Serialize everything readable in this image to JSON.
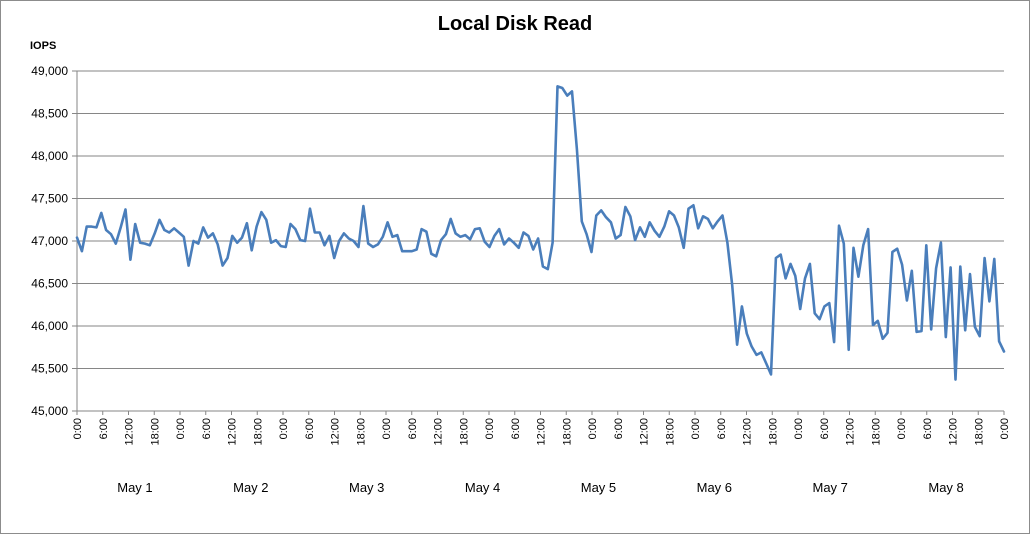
{
  "chart_data": {
    "type": "line",
    "title": "Local Disk Read",
    "ylabel": "IOPS",
    "xlabel": "",
    "ylim": [
      45000,
      49000
    ],
    "yticks": [
      "45,000",
      "45,500",
      "46,000",
      "46,500",
      "47,000",
      "47,500",
      "48,000",
      "48,500",
      "49,000"
    ],
    "xticks": [
      "0:00",
      "6:00",
      "12:00",
      "18:00",
      "0:00",
      "6:00",
      "12:00",
      "18:00",
      "0:00",
      "6:00",
      "12:00",
      "18:00",
      "0:00",
      "6:00",
      "12:00",
      "18:00",
      "0:00",
      "6:00",
      "12:00",
      "18:00",
      "0:00",
      "6:00",
      "12:00",
      "18:00",
      "0:00",
      "6:00",
      "12:00",
      "18:00",
      "0:00",
      "6:00",
      "12:00",
      "18:00",
      "0:00",
      "6:00",
      "12:00",
      "18:00",
      "0:00"
    ],
    "day_labels": [
      "May 1",
      "May 2",
      "May 3",
      "May 4",
      "May 5",
      "May 6",
      "May 7",
      "May 8"
    ],
    "x_start": "May 1 0:00",
    "x_end": "May 9 0:00",
    "grid": true,
    "legend": "none",
    "series": [
      {
        "color": "#4a7ebb",
        "values": [
          47040,
          46880,
          47170,
          47170,
          47160,
          47330,
          47130,
          47080,
          46970,
          47160,
          47370,
          46780,
          47200,
          46980,
          46970,
          46950,
          47090,
          47250,
          47130,
          47100,
          47150,
          47100,
          47050,
          46710,
          47000,
          46970,
          47160,
          47040,
          47090,
          46960,
          46710,
          46800,
          47060,
          46980,
          47040,
          47210,
          46890,
          47170,
          47340,
          47250,
          46980,
          47010,
          46940,
          46930,
          47200,
          47140,
          47010,
          47000,
          47380,
          47100,
          47100,
          46950,
          47060,
          46800,
          47000,
          47090,
          47030,
          47000,
          46930,
          47410,
          46970,
          46930,
          46960,
          47050,
          47220,
          47050,
          47070,
          46880,
          46880,
          46880,
          46900,
          47140,
          47110,
          46850,
          46820,
          47010,
          47080,
          47260,
          47090,
          47050,
          47070,
          47020,
          47140,
          47150,
          46990,
          46930,
          47060,
          47140,
          46960,
          47030,
          46980,
          46920,
          47100,
          47060,
          46900,
          47030,
          46700,
          46670,
          46980,
          48820,
          48800,
          48710,
          48760,
          48080,
          47230,
          47080,
          46870,
          47300,
          47360,
          47280,
          47220,
          47030,
          47070,
          47400,
          47290,
          47010,
          47160,
          47050,
          47220,
          47120,
          47050,
          47170,
          47350,
          47300,
          47160,
          46920,
          47380,
          47420,
          47150,
          47290,
          47260,
          47150,
          47230,
          47300,
          46980,
          46480,
          45780,
          46230,
          45910,
          45760,
          45660,
          45690,
          45560,
          45430,
          46800,
          46840,
          46560,
          46730,
          46590,
          46200,
          46560,
          46730,
          46150,
          46080,
          46230,
          46270,
          45810,
          47180,
          46970,
          45720,
          46920,
          46580,
          46950,
          47140,
          46010,
          46060,
          45850,
          45920,
          46870,
          46910,
          46720,
          46300,
          46650,
          45930,
          45940,
          46950,
          45960,
          46680,
          46980,
          45870,
          46690,
          45370,
          46700,
          45950,
          46610,
          45990,
          45880,
          46800,
          46290,
          46790,
          45820,
          45700
        ]
      }
    ]
  }
}
